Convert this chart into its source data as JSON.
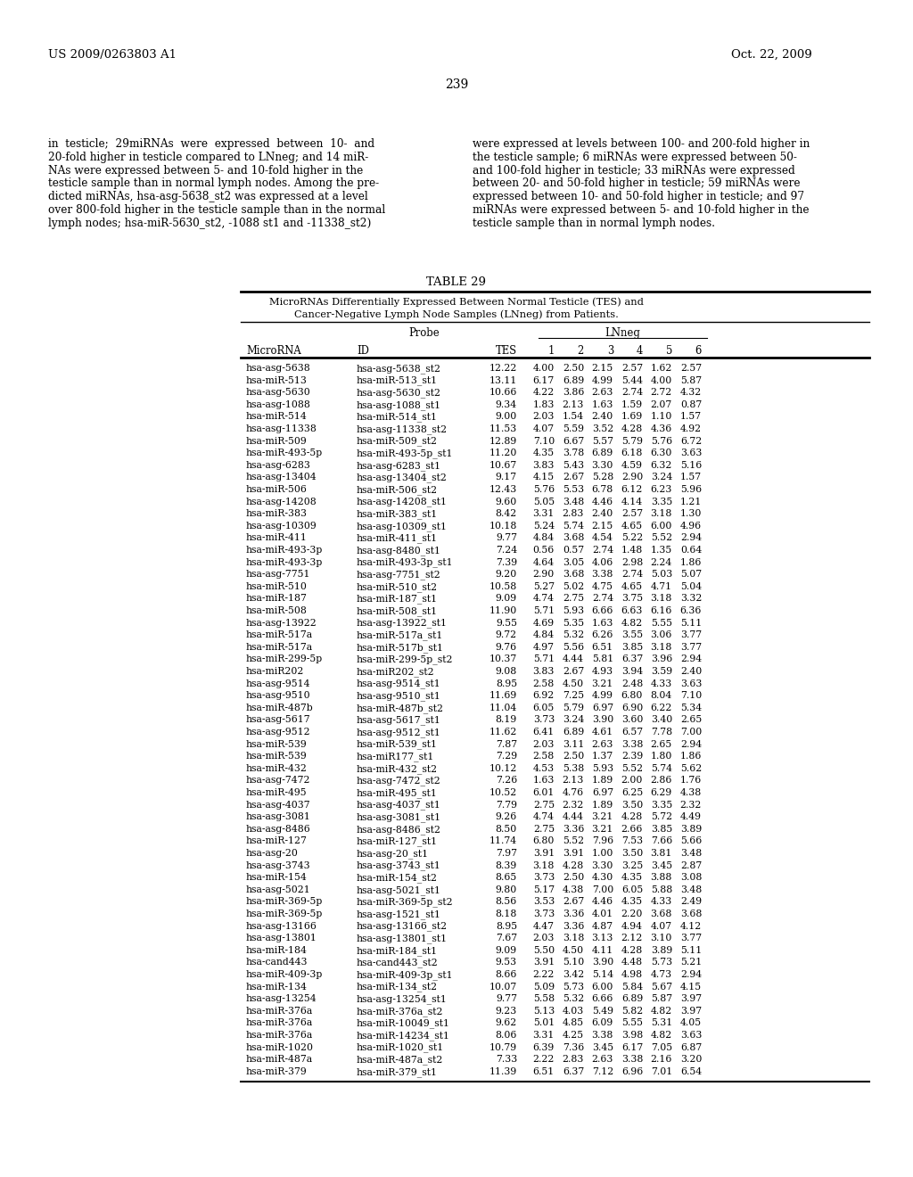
{
  "patent_number": "US 2009/0263803 A1",
  "patent_date": "Oct. 22, 2009",
  "page_number": "239",
  "left_lines": [
    "in  testicle;  29miRNAs  were  expressed  between  10-  and",
    "20-fold higher in testicle compared to LNneg; and 14 miR-",
    "NAs were expressed between 5- and 10-fold higher in the",
    "testicle sample than in normal lymph nodes. Among the pre-",
    "dicted miRNAs, hsa-asg-5638_st2 was expressed at a level",
    "over 800-fold higher in the testicle sample than in the normal",
    "lymph nodes; hsa-miR-5630_st2, -1088 st1 and -11338_st2)"
  ],
  "right_lines": [
    "were expressed at levels between 100- and 200-fold higher in",
    "the testicle sample; 6 miRNAs were expressed between 50-",
    "and 100-fold higher in testicle; 33 miRNAs were expressed",
    "between 20- and 50-fold higher in testicle; 59 miRNAs were",
    "expressed between 10- and 50-fold higher in testicle; and 97",
    "miRNAs were expressed between 5- and 10-fold higher in the",
    "testicle sample than in normal lymph nodes."
  ],
  "table_title": "TABLE 29",
  "subtitle_line1": "MicroRNAs Differentially Expressed Between Normal Testicle (TES) and",
  "subtitle_line2": "Cancer-Negative Lymph Node Samples (LNneg) from Patients.",
  "rows": [
    [
      "hsa-asg-5638",
      "hsa-asg-5638_st2",
      "12.22",
      "4.00",
      "2.50",
      "2.15",
      "2.57",
      "1.62",
      "2.57"
    ],
    [
      "hsa-miR-513",
      "hsa-miR-513_st1",
      "13.11",
      "6.17",
      "6.89",
      "4.99",
      "5.44",
      "4.00",
      "5.87"
    ],
    [
      "hsa-asg-5630",
      "hsa-asg-5630_st2",
      "10.66",
      "4.22",
      "3.86",
      "2.63",
      "2.74",
      "2.72",
      "4.32"
    ],
    [
      "hsa-asg-1088",
      "hsa-asg-1088_st1",
      "9.34",
      "1.83",
      "2.13",
      "1.63",
      "1.59",
      "2.07",
      "0.87"
    ],
    [
      "hsa-miR-514",
      "hsa-miR-514_st1",
      "9.00",
      "2.03",
      "1.54",
      "2.40",
      "1.69",
      "1.10",
      "1.57"
    ],
    [
      "hsa-asg-11338",
      "hsa-asg-11338_st2",
      "11.53",
      "4.07",
      "5.59",
      "3.52",
      "4.28",
      "4.36",
      "4.92"
    ],
    [
      "hsa-miR-509",
      "hsa-miR-509_st2",
      "12.89",
      "7.10",
      "6.67",
      "5.57",
      "5.79",
      "5.76",
      "6.72"
    ],
    [
      "hsa-miR-493-5p",
      "hsa-miR-493-5p_st1",
      "11.20",
      "4.35",
      "3.78",
      "6.89",
      "6.18",
      "6.30",
      "3.63"
    ],
    [
      "hsa-asg-6283",
      "hsa-asg-6283_st1",
      "10.67",
      "3.83",
      "5.43",
      "3.30",
      "4.59",
      "6.32",
      "5.16"
    ],
    [
      "hsa-asg-13404",
      "hsa-asg-13404_st2",
      "9.17",
      "4.15",
      "2.67",
      "5.28",
      "2.90",
      "3.24",
      "1.57"
    ],
    [
      "hsa-miR-506",
      "hsa-miR-506_st2",
      "12.43",
      "5.76",
      "5.53",
      "6.78",
      "6.12",
      "6.23",
      "5.96"
    ],
    [
      "hsa-asg-14208",
      "hsa-asg-14208_st1",
      "9.60",
      "5.05",
      "3.48",
      "4.46",
      "4.14",
      "3.35",
      "1.21"
    ],
    [
      "hsa-miR-383",
      "hsa-miR-383_st1",
      "8.42",
      "3.31",
      "2.83",
      "2.40",
      "2.57",
      "3.18",
      "1.30"
    ],
    [
      "hsa-asg-10309",
      "hsa-asg-10309_st1",
      "10.18",
      "5.24",
      "5.74",
      "2.15",
      "4.65",
      "6.00",
      "4.96"
    ],
    [
      "hsa-miR-411",
      "hsa-miR-411_st1",
      "9.77",
      "4.84",
      "3.68",
      "4.54",
      "5.22",
      "5.52",
      "2.94"
    ],
    [
      "hsa-miR-493-3p",
      "hsa-asg-8480_st1",
      "7.24",
      "0.56",
      "0.57",
      "2.74",
      "1.48",
      "1.35",
      "0.64"
    ],
    [
      "hsa-miR-493-3p",
      "hsa-miR-493-3p_st1",
      "7.39",
      "4.64",
      "3.05",
      "4.06",
      "2.98",
      "2.24",
      "1.86"
    ],
    [
      "hsa-asg-7751",
      "hsa-asg-7751_st2",
      "9.20",
      "2.90",
      "3.68",
      "3.38",
      "2.74",
      "5.03",
      "5.07"
    ],
    [
      "hsa-miR-510",
      "hsa-miR-510_st2",
      "10.58",
      "5.27",
      "5.02",
      "4.75",
      "4.65",
      "4.71",
      "5.04"
    ],
    [
      "hsa-miR-187",
      "hsa-miR-187_st1",
      "9.09",
      "4.74",
      "2.75",
      "2.74",
      "3.75",
      "3.18",
      "3.32"
    ],
    [
      "hsa-miR-508",
      "hsa-miR-508_st1",
      "11.90",
      "5.71",
      "5.93",
      "6.66",
      "6.63",
      "6.16",
      "6.36"
    ],
    [
      "hsa-asg-13922",
      "hsa-asg-13922_st1",
      "9.55",
      "4.69",
      "5.35",
      "1.63",
      "4.82",
      "5.55",
      "5.11"
    ],
    [
      "hsa-miR-517a",
      "hsa-miR-517a_st1",
      "9.72",
      "4.84",
      "5.32",
      "6.26",
      "3.55",
      "3.06",
      "3.77"
    ],
    [
      "hsa-miR-517a",
      "hsa-miR-517b_st1",
      "9.76",
      "4.97",
      "5.56",
      "6.51",
      "3.85",
      "3.18",
      "3.77"
    ],
    [
      "hsa-miR-299-5p",
      "hsa-miR-299-5p_st2",
      "10.37",
      "5.71",
      "4.44",
      "5.81",
      "6.37",
      "3.96",
      "2.94"
    ],
    [
      "hsa-miR202",
      "hsa-miR202_st2",
      "9.08",
      "3.83",
      "2.67",
      "4.93",
      "3.94",
      "3.59",
      "2.40"
    ],
    [
      "hsa-asg-9514",
      "hsa-asg-9514_st1",
      "8.95",
      "2.58",
      "4.50",
      "3.21",
      "2.48",
      "4.33",
      "3.63"
    ],
    [
      "hsa-asg-9510",
      "hsa-asg-9510_st1",
      "11.69",
      "6.92",
      "7.25",
      "4.99",
      "6.80",
      "8.04",
      "7.10"
    ],
    [
      "hsa-miR-487b",
      "hsa-miR-487b_st2",
      "11.04",
      "6.05",
      "5.79",
      "6.97",
      "6.90",
      "6.22",
      "5.34"
    ],
    [
      "hsa-asg-5617",
      "hsa-asg-5617_st1",
      "8.19",
      "3.73",
      "3.24",
      "3.90",
      "3.60",
      "3.40",
      "2.65"
    ],
    [
      "hsa-asg-9512",
      "hsa-asg-9512_st1",
      "11.62",
      "6.41",
      "6.89",
      "4.61",
      "6.57",
      "7.78",
      "7.00"
    ],
    [
      "hsa-miR-539",
      "hsa-miR-539_st1",
      "7.87",
      "2.03",
      "3.11",
      "2.63",
      "3.38",
      "2.65",
      "2.94"
    ],
    [
      "hsa-miR-539",
      "hsa-miR177_st1",
      "7.29",
      "2.58",
      "2.50",
      "1.37",
      "2.39",
      "1.80",
      "1.86"
    ],
    [
      "hsa-miR-432",
      "hsa-miR-432_st2",
      "10.12",
      "4.53",
      "5.38",
      "5.93",
      "5.52",
      "5.74",
      "5.62"
    ],
    [
      "hsa-asg-7472",
      "hsa-asg-7472_st2",
      "7.26",
      "1.63",
      "2.13",
      "1.89",
      "2.00",
      "2.86",
      "1.76"
    ],
    [
      "hsa-miR-495",
      "hsa-miR-495_st1",
      "10.52",
      "6.01",
      "4.76",
      "6.97",
      "6.25",
      "6.29",
      "4.38"
    ],
    [
      "hsa-asg-4037",
      "hsa-asg-4037_st1",
      "7.79",
      "2.75",
      "2.32",
      "1.89",
      "3.50",
      "3.35",
      "2.32"
    ],
    [
      "hsa-asg-3081",
      "hsa-asg-3081_st1",
      "9.26",
      "4.74",
      "4.44",
      "3.21",
      "4.28",
      "5.72",
      "4.49"
    ],
    [
      "hsa-asg-8486",
      "hsa-asg-8486_st2",
      "8.50",
      "2.75",
      "3.36",
      "3.21",
      "2.66",
      "3.85",
      "3.89"
    ],
    [
      "hsa-miR-127",
      "hsa-miR-127_st1",
      "11.74",
      "6.80",
      "5.52",
      "7.96",
      "7.53",
      "7.66",
      "5.66"
    ],
    [
      "hsa-asg-20",
      "hsa-asg-20_st1",
      "7.97",
      "3.91",
      "3.91",
      "1.00",
      "3.50",
      "3.81",
      "3.48"
    ],
    [
      "hsa-asg-3743",
      "hsa-asg-3743_st1",
      "8.39",
      "3.18",
      "4.28",
      "3.30",
      "3.25",
      "3.45",
      "2.87"
    ],
    [
      "hsa-miR-154",
      "hsa-miR-154_st2",
      "8.65",
      "3.73",
      "2.50",
      "4.30",
      "4.35",
      "3.88",
      "3.08"
    ],
    [
      "hsa-asg-5021",
      "hsa-asg-5021_st1",
      "9.80",
      "5.17",
      "4.38",
      "7.00",
      "6.05",
      "5.88",
      "3.48"
    ],
    [
      "hsa-miR-369-5p",
      "hsa-miR-369-5p_st2",
      "8.56",
      "3.53",
      "2.67",
      "4.46",
      "4.35",
      "4.33",
      "2.49"
    ],
    [
      "hsa-miR-369-5p",
      "hsa-asg-1521_st1",
      "8.18",
      "3.73",
      "3.36",
      "4.01",
      "2.20",
      "3.68",
      "3.68"
    ],
    [
      "hsa-asg-13166",
      "hsa-asg-13166_st2",
      "8.95",
      "4.47",
      "3.36",
      "4.87",
      "4.94",
      "4.07",
      "4.12"
    ],
    [
      "hsa-asg-13801",
      "hsa-asg-13801_st1",
      "7.67",
      "2.03",
      "3.18",
      "3.13",
      "2.12",
      "3.10",
      "3.77"
    ],
    [
      "hsa-miR-184",
      "hsa-miR-184_st1",
      "9.09",
      "5.50",
      "4.50",
      "4.11",
      "4.28",
      "3.89",
      "5.11"
    ],
    [
      "hsa-cand443",
      "hsa-cand443_st2",
      "9.53",
      "3.91",
      "5.10",
      "3.90",
      "4.48",
      "5.73",
      "5.21"
    ],
    [
      "hsa-miR-409-3p",
      "hsa-miR-409-3p_st1",
      "8.66",
      "2.22",
      "3.42",
      "5.14",
      "4.98",
      "4.73",
      "2.94"
    ],
    [
      "hsa-miR-134",
      "hsa-miR-134_st2",
      "10.07",
      "5.09",
      "5.73",
      "6.00",
      "5.84",
      "5.67",
      "4.15"
    ],
    [
      "hsa-asg-13254",
      "hsa-asg-13254_st1",
      "9.77",
      "5.58",
      "5.32",
      "6.66",
      "6.89",
      "5.87",
      "3.97"
    ],
    [
      "hsa-miR-376a",
      "hsa-miR-376a_st2",
      "9.23",
      "5.13",
      "4.03",
      "5.49",
      "5.82",
      "4.82",
      "3.97"
    ],
    [
      "hsa-miR-376a",
      "hsa-miR-10049_st1",
      "9.62",
      "5.01",
      "4.85",
      "6.09",
      "5.55",
      "5.31",
      "4.05"
    ],
    [
      "hsa-miR-376a",
      "hsa-miR-14234_st1",
      "8.06",
      "3.31",
      "4.25",
      "3.38",
      "3.98",
      "4.82",
      "3.63"
    ],
    [
      "hsa-miR-1020",
      "hsa-miR-1020_st1",
      "10.79",
      "6.39",
      "7.36",
      "3.45",
      "6.17",
      "7.05",
      "6.87"
    ],
    [
      "hsa-miR-487a",
      "hsa-miR-487a_st2",
      "7.33",
      "2.22",
      "2.83",
      "2.63",
      "3.38",
      "2.16",
      "3.20"
    ],
    [
      "hsa-miR-379",
      "hsa-miR-379_st1",
      "11.39",
      "6.51",
      "6.37",
      "7.12",
      "6.96",
      "7.01",
      "6.54"
    ]
  ]
}
